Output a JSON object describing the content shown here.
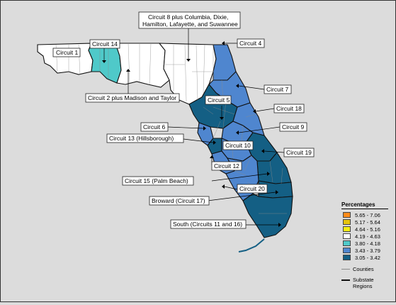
{
  "colors": {
    "c1": "#ff8c1a",
    "c2": "#e6c40e",
    "c3": "#f4ee15",
    "c4": "#ffffff",
    "c5": "#4fc9c9",
    "c6": "#4f86cf",
    "c7": "#145f84",
    "background": "#dcdcdc",
    "county_line": "#8a8a8a",
    "region_line": "#111111"
  },
  "legend": {
    "title": "Percentages",
    "items": [
      {
        "label": "5.65 - 7.06",
        "color": "#ff8c1a"
      },
      {
        "label": "5.17 - 5.64",
        "color": "#e6c40e"
      },
      {
        "label": "4.64 - 5.16",
        "color": "#f4ee15"
      },
      {
        "label": "4.19 - 4.63",
        "color": "#ffffff"
      },
      {
        "label": "3.80 - 4.18",
        "color": "#4fc9c9"
      },
      {
        "label": "3.43 - 3.79",
        "color": "#4f86cf"
      },
      {
        "label": "3.05 - 3.42",
        "color": "#145f84"
      }
    ],
    "counties_label": "Counties",
    "regions_label": "Substate Regions"
  },
  "labels": {
    "circuit1": "Circuit 1",
    "circuit14": "Circuit 14",
    "circuit8_l1": "Circuit 8 plus Columbia, Dixie,",
    "circuit8_l2": "Hamilton, Lafayette, and Suwannee",
    "circuit4": "Circuit 4",
    "circuit2": "Circuit 2 plus Madison and Taylor",
    "circuit7": "Circuit 7",
    "circuit5": "Circuit 5",
    "circuit18": "Circuit 18",
    "circuit6": "Circuit 6",
    "circuit9": "Circuit 9",
    "circuit13": "Circuit 13 (Hillsborough)",
    "circuit10": "Circuit 10",
    "circuit19": "Circuit 19",
    "circuit12": "Circuit 12",
    "circuit15": "Circuit 15 (Palm Beach)",
    "circuit20": "Circuit 20",
    "circuit17": "Broward (Circuit 17)",
    "south": "South (Circuits 11 and 16)"
  }
}
